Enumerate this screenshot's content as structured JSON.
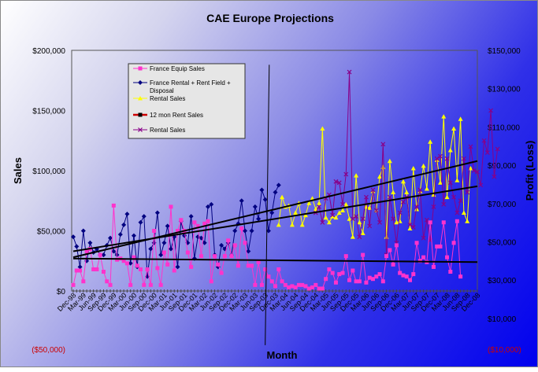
{
  "chart_data": {
    "type": "line",
    "title": "CAE Europe Projections",
    "xlabel": "Month",
    "ylabel": "Sales",
    "y2label": "Profit (Loss)",
    "ylim": [
      0,
      200000
    ],
    "y2lim": [
      10000,
      150000
    ],
    "y_ticks": [
      "$200,000",
      "$150,000",
      "$100,000",
      "$50,000",
      "$0"
    ],
    "y_below_label": "($50,000)",
    "y2_ticks": [
      "$150,000",
      "$130,000",
      "$110,000",
      "$90,000",
      "$70,000",
      "$50,000",
      "$30,000",
      "$10,000"
    ],
    "y2_below_label": "($10,000)",
    "x_tick_labels": [
      "Dec-98",
      "Mar-99",
      "Jun-99",
      "Sep-99",
      "Dec-99",
      "Mar-00",
      "Jun-00",
      "Sep-00",
      "Dec-00",
      "Mar-01",
      "Jun-01",
      "Sep-01",
      "Dec-01",
      "Mar-02",
      "Jun-02",
      "Sep-02",
      "Dec-02",
      "Mar-03",
      "Jun-03",
      "Sep-03",
      "Dec-03",
      "Mar-04",
      "Jun-04",
      "Sep-04",
      "Dec-04",
      "Mar-05",
      "Jun-05",
      "Sep-05",
      "Dec-05",
      "Mar-06",
      "Jun-06",
      "Sep-06",
      "Dec-06",
      "Mar-07",
      "Jun-07",
      "Sep-07",
      "Dec-07",
      "Mar-08",
      "Jun-08",
      "Sep-08",
      "Dec-08"
    ],
    "legend_position": "top-left",
    "series": [
      {
        "name": "France Equip Sales",
        "color": "#ff33cc",
        "marker": "square",
        "axis": "left",
        "start": 0,
        "values": [
          5000,
          17000,
          17000,
          8000,
          33000,
          35000,
          18000,
          18000,
          30000,
          16000,
          8000,
          5000,
          71000,
          26000,
          27000,
          25000,
          23000,
          5000,
          28000,
          21000,
          18000,
          5000,
          18000,
          5000,
          50000,
          19000,
          5000,
          32000,
          22000,
          70000,
          17000,
          50000,
          59000,
          50000,
          32000,
          20000,
          57000,
          54000,
          29000,
          56000,
          58000,
          8000,
          29000,
          22000,
          15000,
          29000,
          42000,
          29000,
          38000,
          21000,
          52000,
          40000,
          21000,
          21000,
          5000,
          24000,
          5000,
          18000,
          12000,
          8000,
          4000,
          18000,
          8000,
          5000,
          3000,
          4000,
          3000,
          5000,
          5000,
          4000,
          2000,
          3000,
          5000,
          2000,
          2000,
          10000,
          18000,
          15000,
          7000,
          14000,
          15000,
          29000,
          9000,
          17000,
          8000,
          8000,
          30000,
          7000,
          11000,
          10000,
          12000,
          14000,
          8000,
          29000,
          34000,
          22000,
          38000,
          15000,
          13000,
          12000,
          9000,
          14000,
          40000,
          25000,
          28000,
          24000,
          57000,
          20000,
          37000,
          37000,
          57000,
          28000,
          16000,
          40000,
          58000,
          12000
        ]
      },
      {
        "name": "France Rental + Rent Field + Disposal",
        "color": "#000080",
        "marker": "diamond",
        "axis": "left",
        "start": 0,
        "values": [
          45000,
          37000,
          20000,
          50000,
          25000,
          40000,
          32000,
          35000,
          30000,
          30000,
          38000,
          44000,
          33000,
          30000,
          47000,
          55000,
          64000,
          23000,
          46000,
          20000,
          57000,
          62000,
          12000,
          35000,
          40000,
          65000,
          30000,
          40000,
          54000,
          35000,
          45000,
          20000,
          58000,
          46000,
          40000,
          62000,
          27000,
          45000,
          44000,
          40000,
          70000,
          72000,
          30000,
          20000,
          38000,
          35000,
          40000,
          30000,
          50000,
          56000,
          75000,
          50000,
          33000,
          50000,
          70000,
          60000,
          84000,
          76000,
          50000,
          65000,
          82000,
          88000
        ]
      },
      {
        "name": "Rental Sales",
        "color": "#ffff00",
        "marker": "triangle",
        "axis": "left",
        "start": 61,
        "values": [
          55000,
          78000,
          70000,
          71000,
          55000,
          65000,
          73000,
          55000,
          63000,
          73000,
          77000,
          68000,
          73000,
          135000,
          61000,
          57000,
          62000,
          61000,
          65000,
          67000,
          72000,
          60000,
          45000,
          96000,
          57000,
          48000,
          70000,
          69000,
          83000,
          67000,
          95000,
          103000,
          45000,
          108000,
          82000,
          57000,
          58000,
          91000,
          82000,
          52000,
          102000,
          68000,
          83000,
          104000,
          85000,
          124000,
          80000,
          109000,
          90000,
          145000,
          78000,
          117000,
          135000,
          92000,
          143000,
          65000,
          58000,
          102000
        ]
      },
      {
        "name": "12 mon Rent Sales",
        "color": "#cc0000",
        "marker": "square",
        "axis": "left",
        "start": 0,
        "values": []
      },
      {
        "name": "Rental Sales",
        "color": "#880088",
        "marker": "x",
        "axis": "left",
        "start": 72,
        "values": [
          65000,
          70000,
          57000,
          77000,
          80000,
          63000,
          91000,
          90000,
          72000,
          97000,
          182000,
          60000,
          62000,
          45000,
          60000,
          78000,
          54000,
          84000,
          67000,
          57000,
          122000,
          30000,
          78000,
          60000,
          40000,
          65000,
          74000,
          78000,
          55000,
          53000,
          70000,
          84000,
          44000,
          59000,
          42000,
          70000,
          110000,
          112000,
          72000,
          110000,
          90000,
          78000,
          65000,
          75000,
          110000,
          82000,
          120000,
          100000,
          99000,
          88000,
          125000,
          115000,
          150000,
          95000,
          118000
        ]
      }
    ],
    "trendlines": [
      {
        "name": "trend-rental-combined",
        "x": [
          0,
          100
        ],
        "values": [
          33000,
          87000
        ],
        "color": "#000000"
      },
      {
        "name": "trend-equip",
        "x": [
          0,
          100
        ],
        "values": [
          27000,
          24000
        ],
        "color": "#000000"
      },
      {
        "name": "trend-rental-steep",
        "x": [
          0,
          100
        ],
        "values": [
          28000,
          108000
        ],
        "color": "#000000"
      },
      {
        "name": "trend-vertical-break",
        "x": [
          48.5,
          47.5
        ],
        "values": [
          188000,
          -45000
        ],
        "color": "#000000"
      }
    ]
  }
}
